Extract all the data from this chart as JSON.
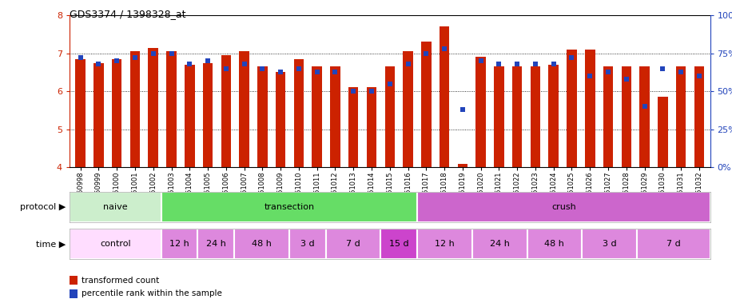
{
  "title": "GDS3374 / 1398328_at",
  "samples": [
    "GSM250998",
    "GSM250999",
    "GSM251000",
    "GSM251001",
    "GSM251002",
    "GSM251003",
    "GSM251004",
    "GSM251005",
    "GSM251006",
    "GSM251007",
    "GSM251008",
    "GSM251009",
    "GSM251010",
    "GSM251011",
    "GSM251012",
    "GSM251013",
    "GSM251014",
    "GSM251015",
    "GSM251016",
    "GSM251017",
    "GSM251018",
    "GSM251019",
    "GSM251020",
    "GSM251021",
    "GSM251022",
    "GSM251023",
    "GSM251024",
    "GSM251025",
    "GSM251026",
    "GSM251027",
    "GSM251028",
    "GSM251029",
    "GSM251030",
    "GSM251031",
    "GSM251032"
  ],
  "bar_values": [
    6.85,
    6.75,
    6.85,
    7.05,
    7.15,
    7.05,
    6.7,
    6.75,
    6.95,
    7.05,
    6.65,
    6.5,
    6.85,
    6.65,
    6.65,
    6.1,
    6.1,
    6.65,
    7.05,
    7.3,
    7.7,
    4.1,
    6.9,
    6.65,
    6.65,
    6.65,
    6.7,
    7.1,
    7.1,
    6.65,
    6.65,
    6.65,
    5.85,
    6.65,
    6.65
  ],
  "percentile_values": [
    72,
    68,
    70,
    72,
    75,
    75,
    68,
    70,
    65,
    68,
    65,
    63,
    65,
    63,
    63,
    50,
    50,
    55,
    68,
    75,
    78,
    38,
    70,
    68,
    68,
    68,
    68,
    72,
    60,
    63,
    58,
    40,
    65,
    63,
    60
  ],
  "bar_color": "#cc2200",
  "dot_color": "#2244bb",
  "bar_bottom": 4.0,
  "ylim_left": [
    4.0,
    8.0
  ],
  "ylim_right": [
    0,
    100
  ],
  "yticks_left": [
    4,
    5,
    6,
    7,
    8
  ],
  "yticks_right": [
    0,
    25,
    50,
    75,
    100
  ],
  "ytick_labels_right": [
    "0%",
    "25%",
    "50%",
    "75%",
    "100%"
  ],
  "protocol_groups": [
    {
      "label": "naive",
      "start": 0,
      "end": 4,
      "color": "#cceecc"
    },
    {
      "label": "transection",
      "start": 5,
      "end": 18,
      "color": "#66dd66"
    },
    {
      "label": "crush",
      "start": 19,
      "end": 34,
      "color": "#cc66cc"
    }
  ],
  "time_groups": [
    {
      "label": "control",
      "start": 0,
      "end": 4,
      "color": "#ffddff"
    },
    {
      "label": "12 h",
      "start": 5,
      "end": 6,
      "color": "#dd88dd"
    },
    {
      "label": "24 h",
      "start": 7,
      "end": 8,
      "color": "#dd88dd"
    },
    {
      "label": "48 h",
      "start": 9,
      "end": 11,
      "color": "#dd88dd"
    },
    {
      "label": "3 d",
      "start": 12,
      "end": 13,
      "color": "#dd88dd"
    },
    {
      "label": "7 d",
      "start": 14,
      "end": 16,
      "color": "#dd88dd"
    },
    {
      "label": "15 d",
      "start": 17,
      "end": 18,
      "color": "#cc44cc"
    },
    {
      "label": "12 h",
      "start": 19,
      "end": 21,
      "color": "#dd88dd"
    },
    {
      "label": "24 h",
      "start": 22,
      "end": 24,
      "color": "#dd88dd"
    },
    {
      "label": "48 h",
      "start": 25,
      "end": 27,
      "color": "#dd88dd"
    },
    {
      "label": "3 d",
      "start": 28,
      "end": 30,
      "color": "#dd88dd"
    },
    {
      "label": "7 d",
      "start": 31,
      "end": 34,
      "color": "#dd88dd"
    }
  ],
  "legend_red_label": "transformed count",
  "legend_blue_label": "percentile rank within the sample",
  "bar_width": 0.55
}
